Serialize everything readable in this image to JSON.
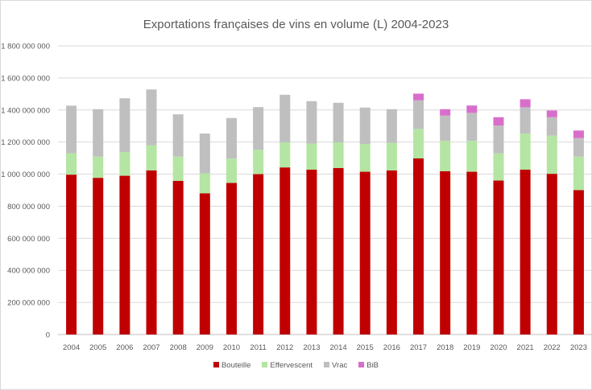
{
  "chart_data": {
    "type": "bar",
    "stacked": true,
    "title": "Exportations françaises de vins en volume (L) 2004-2023",
    "xlabel": "",
    "ylabel": "",
    "ylim": [
      0,
      1800000000
    ],
    "yticks": [
      "0",
      "200 000 000",
      "400 000 000",
      "600 000 000",
      "800 000 000",
      "1 000 000 000",
      "1 200 000 000",
      "1 400 000 000",
      "1 600 000 000",
      "1 800 000 000"
    ],
    "grid": true,
    "legend_position": "bottom",
    "categories": [
      "2004",
      "2005",
      "2006",
      "2007",
      "2008",
      "2009",
      "2010",
      "2011",
      "2012",
      "2013",
      "2014",
      "2015",
      "2016",
      "2017",
      "2018",
      "2019",
      "2020",
      "2021",
      "2022",
      "2023"
    ],
    "series": [
      {
        "name": "Bouteille",
        "color": "#C00000",
        "values": [
          997000000,
          977000000,
          990000000,
          1023000000,
          958000000,
          880000000,
          945000000,
          1000000000,
          1042000000,
          1028000000,
          1038000000,
          1015000000,
          1023000000,
          1098000000,
          1018000000,
          1015000000,
          960000000,
          1028000000,
          1002000000,
          900000000
        ]
      },
      {
        "name": "Effervescent",
        "color": "#B4E5A2",
        "values": [
          133000000,
          133000000,
          148000000,
          157000000,
          152000000,
          125000000,
          152000000,
          152000000,
          156000000,
          162000000,
          160000000,
          173000000,
          172000000,
          184000000,
          189000000,
          192000000,
          170000000,
          225000000,
          238000000,
          210000000
        ]
      },
      {
        "name": "Vrac",
        "color": "#BFBFBF",
        "values": [
          297000000,
          295000000,
          335000000,
          348000000,
          263000000,
          248000000,
          253000000,
          266000000,
          297000000,
          265000000,
          247000000,
          227000000,
          210000000,
          178000000,
          158000000,
          175000000,
          173000000,
          164000000,
          115000000,
          115000000
        ]
      },
      {
        "name": "BiB",
        "color": "#D86ECC",
        "values": [
          0,
          0,
          0,
          0,
          0,
          0,
          0,
          0,
          0,
          0,
          0,
          0,
          0,
          42000000,
          40000000,
          46000000,
          52000000,
          50000000,
          42000000,
          47000000
        ]
      }
    ]
  }
}
